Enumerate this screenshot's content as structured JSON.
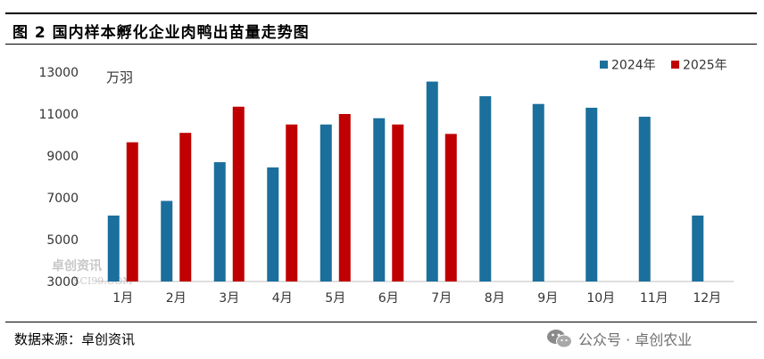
{
  "figure": {
    "title": "图 2  国内样本孵化企业肉鸭出苗量走势图",
    "unit_label": "万羽",
    "source": "数据来源：卓创资讯",
    "wechat_label": "公众号 · 卓创农业",
    "watermark_text": "卓创资讯",
    "watermark_url": "SCI99.COM"
  },
  "chart_data": {
    "type": "bar",
    "categories": [
      "1月",
      "2月",
      "3月",
      "4月",
      "5月",
      "6月",
      "7月",
      "8月",
      "9月",
      "10月",
      "11月",
      "12月"
    ],
    "series": [
      {
        "name": "2024年",
        "color": "#1b6f9c",
        "values": [
          6150,
          6850,
          8700,
          8450,
          10500,
          10800,
          12550,
          11850,
          11480,
          11300,
          10870,
          6150
        ]
      },
      {
        "name": "2025年",
        "color": "#c00000",
        "values": [
          9650,
          10100,
          11350,
          10500,
          11000,
          10500,
          10050,
          null,
          null,
          null,
          null,
          null
        ]
      }
    ],
    "ylim": [
      3000,
      13000
    ],
    "yticks": [
      3000,
      5000,
      7000,
      9000,
      11000,
      13000
    ],
    "ylabel": "万羽",
    "xlabel": "",
    "legend_position": "top-right",
    "grid": false
  }
}
